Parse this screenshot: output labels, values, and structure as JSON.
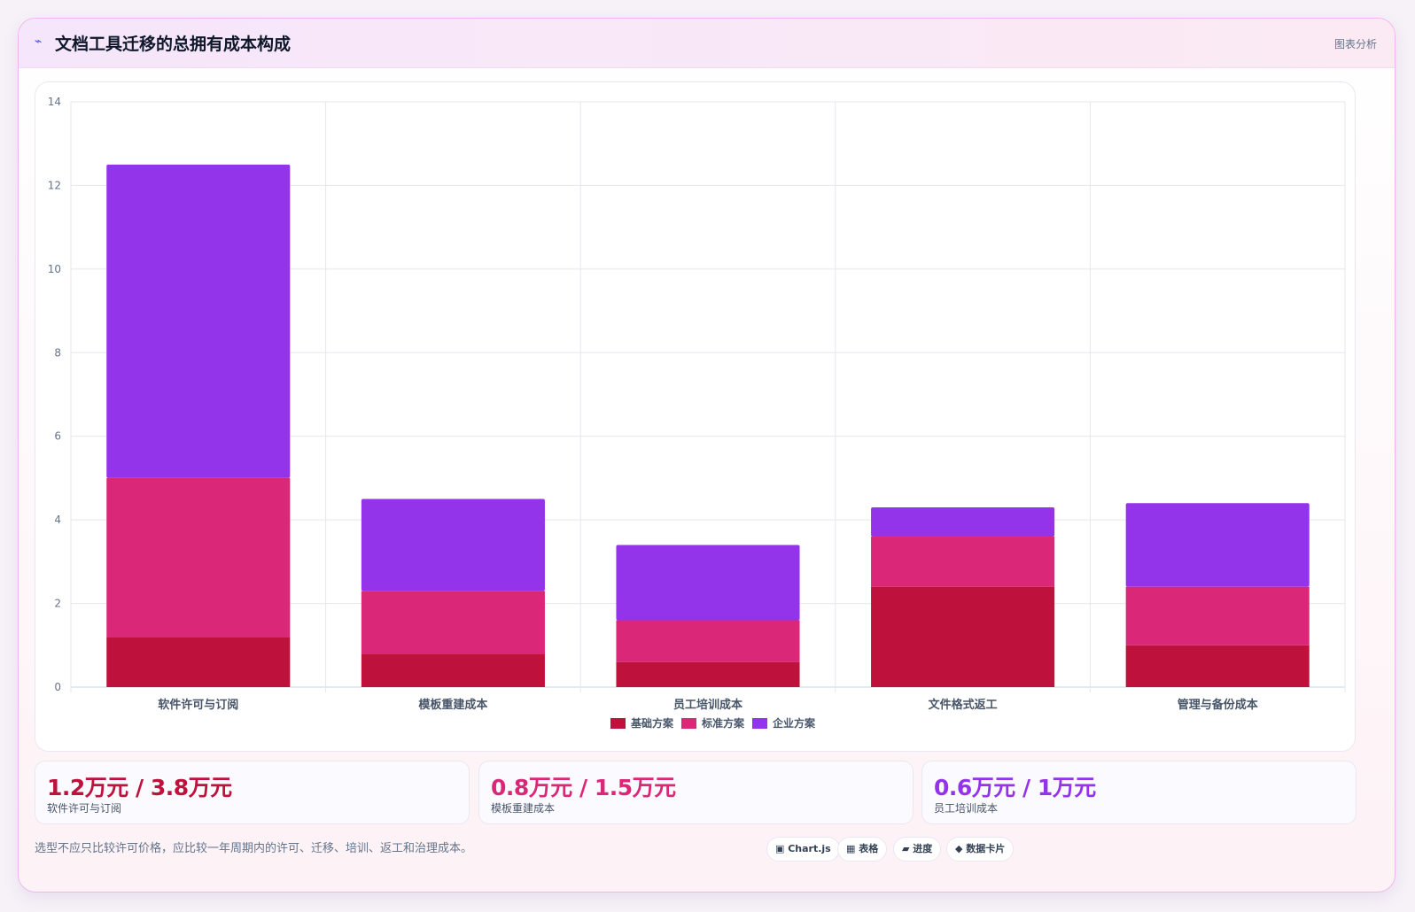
{
  "header": {
    "icon": "bolt-icon",
    "title": "文档工具迁移的总拥有成本构成",
    "tag": "图表分析"
  },
  "chart_data": {
    "type": "bar",
    "stacked": true,
    "categories": [
      "软件许可与订阅",
      "模板重建成本",
      "员工培训成本",
      "文件格式返工",
      "管理与备份成本"
    ],
    "series": [
      {
        "name": "基础方案",
        "color": "#be123c",
        "values": [
          1.2,
          0.8,
          0.6,
          2.4,
          1.0
        ]
      },
      {
        "name": "标准方案",
        "color": "#db2777",
        "values": [
          3.8,
          1.5,
          1.0,
          1.2,
          1.4
        ]
      },
      {
        "name": "企业方案",
        "color": "#9333ea",
        "values": [
          7.5,
          2.2,
          1.8,
          0.7,
          2.0
        ]
      }
    ],
    "yticks": [
      "0",
      "2",
      "4",
      "6",
      "8",
      "10",
      "12",
      "14"
    ],
    "ylim": [
      0,
      14
    ],
    "grid": true,
    "legend": "bottom-center"
  },
  "stats": [
    {
      "value": "1.2万元 / 3.8万元",
      "label": "软件许可与订阅",
      "color": "#be123c"
    },
    {
      "value": "0.8万元 / 1.5万元",
      "label": "模板重建成本",
      "color": "#db2777"
    },
    {
      "value": "0.6万元 / 1万元",
      "label": "员工培训成本",
      "color": "#9333ea"
    }
  ],
  "footer": {
    "note": "选型不应只比较许可价格，应比较一年周期内的许可、迁移、培训、返工和治理成本。",
    "chips": [
      "▣ Chart.js",
      "▦ 表格",
      "▰ 进度",
      "◆ 数据卡片"
    ]
  }
}
